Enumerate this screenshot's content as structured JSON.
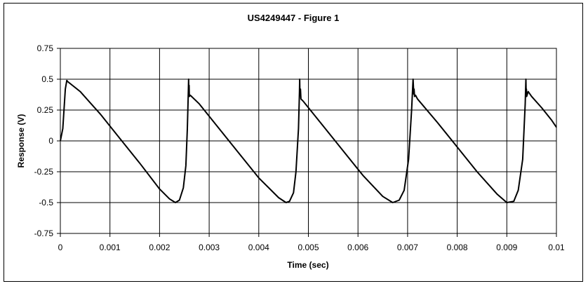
{
  "chart_data": {
    "type": "line",
    "title": "US4249447 - Figure 1",
    "xlabel": "Time (sec)",
    "ylabel": "Response (V)",
    "xlim": [
      0,
      0.01
    ],
    "ylim": [
      -0.75,
      0.75
    ],
    "x_ticks": [
      "0",
      "0.001",
      "0.002",
      "0.003",
      "0.004",
      "0.005",
      "0.006",
      "0.007",
      "0.008",
      "0.009",
      "0.01"
    ],
    "y_ticks": [
      "0.75",
      "0.5",
      "0.25",
      "0",
      "-0.25",
      "-0.5",
      "-0.75"
    ],
    "grid": true,
    "legend": "none",
    "series": [
      {
        "color": "#000000",
        "x": [
          0,
          5e-05,
          0.0001,
          0.00013,
          0.00015,
          0.0004,
          0.0008,
          0.0012,
          0.0016,
          0.002,
          0.0022,
          0.00232,
          0.0024,
          0.00248,
          0.00253,
          0.00256,
          0.00258,
          0.002585,
          0.00259,
          0.002595,
          0.0026,
          0.00262,
          0.0028,
          0.0032,
          0.0036,
          0.004,
          0.0044,
          0.00455,
          0.00462,
          0.0047,
          0.00475,
          0.0048,
          0.00482,
          0.004825,
          0.00483,
          0.00484,
          0.00485,
          0.0049,
          0.0053,
          0.0057,
          0.0061,
          0.0065,
          0.0067,
          0.00683,
          0.00693,
          0.00702,
          0.00708,
          0.00711,
          0.007125,
          0.00713,
          0.00714,
          0.00716,
          0.0072,
          0.0076,
          0.008,
          0.0084,
          0.0088,
          0.009,
          0.00914,
          0.00923,
          0.00932,
          0.00937,
          0.009385,
          0.00939,
          0.009395,
          0.0094,
          0.00943,
          0.0095,
          0.0097,
          0.0099,
          0.01
        ],
        "y": [
          0,
          0.1,
          0.42,
          0.49,
          0.48,
          0.4,
          0.22,
          0.02,
          -0.18,
          -0.39,
          -0.47,
          -0.5,
          -0.48,
          -0.38,
          -0.2,
          0.1,
          0.4,
          0.5,
          0.38,
          0.45,
          0.36,
          0.37,
          0.3,
          0.1,
          -0.1,
          -0.3,
          -0.46,
          -0.5,
          -0.49,
          -0.42,
          -0.25,
          0.1,
          0.4,
          0.5,
          0.37,
          0.42,
          0.34,
          0.32,
          0.12,
          -0.08,
          -0.28,
          -0.45,
          -0.5,
          -0.48,
          -0.4,
          -0.15,
          0.25,
          0.5,
          0.38,
          0.42,
          0.36,
          0.37,
          0.34,
          0.15,
          -0.05,
          -0.25,
          -0.43,
          -0.5,
          -0.49,
          -0.4,
          -0.15,
          0.3,
          0.5,
          0.38,
          0.42,
          0.36,
          0.4,
          0.36,
          0.27,
          0.17,
          0.11
        ]
      }
    ]
  }
}
